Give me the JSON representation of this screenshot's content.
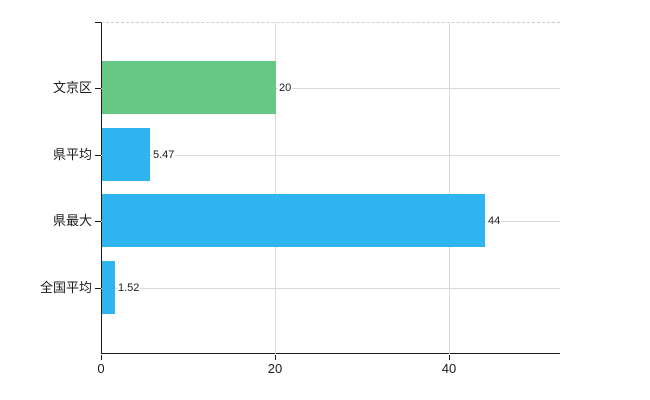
{
  "chart_data": {
    "type": "bar",
    "orientation": "horizontal",
    "title": "",
    "xlabel": "",
    "ylabel": "",
    "categories": [
      "文京区",
      "県平均",
      "県最大",
      "全国平均"
    ],
    "values": [
      20,
      5.47,
      44,
      1.52
    ],
    "value_labels": [
      "20",
      "5.47",
      "44",
      "1.52"
    ],
    "bar_colors": [
      "#66c884",
      "#2eb5f0",
      "#2eb5f0",
      "#2eb5f0"
    ],
    "x_ticks": [
      "0",
      "20",
      "40"
    ],
    "x_tick_values": [
      0,
      20,
      40
    ],
    "xlim": [
      0,
      52.8
    ],
    "grid": true,
    "legend": false
  },
  "colors": {
    "green_bar": "#66c884",
    "blue_bar": "#2eb5f0",
    "axis": "#1a1a1a",
    "gridline": "#d9d9d9",
    "top_border": "#cccccc",
    "text": "#1a1a1a",
    "background": "#ffffff"
  }
}
